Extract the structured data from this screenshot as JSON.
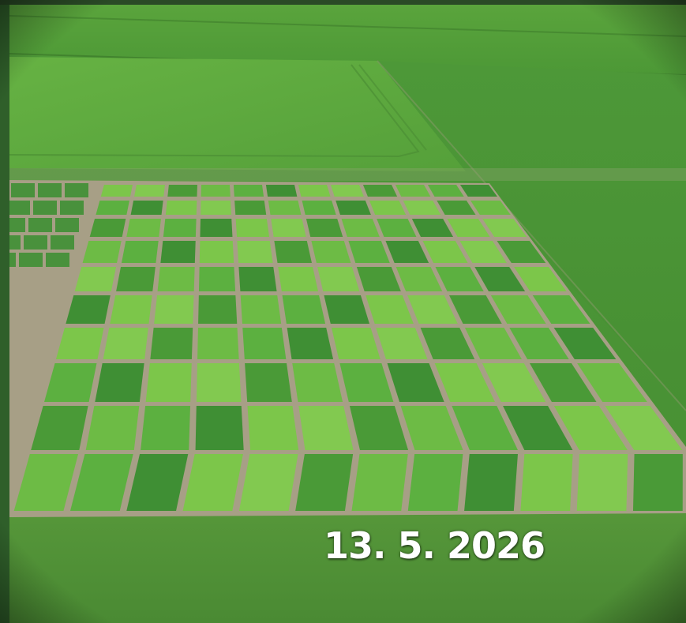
{
  "photo": {
    "subject": "aerial-view-field-trial-plots",
    "date_stamp": "13. 5. 2026",
    "colors": {
      "pasture": "#4f9a3a",
      "crop_field": "#5fa83c",
      "plot_light": "#7cc64a",
      "plot_dark": "#3f8f34",
      "soil_path": "#a79f86",
      "stamp_text": "#ffffff"
    }
  }
}
